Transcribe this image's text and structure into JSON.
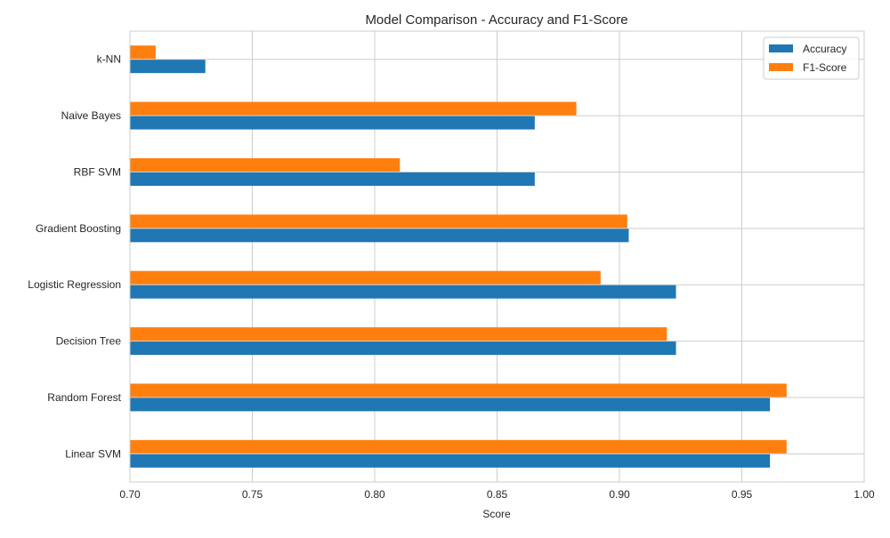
{
  "chart_data": {
    "type": "bar",
    "orientation": "horizontal",
    "title": "Model Comparison - Accuracy and F1-Score",
    "xlabel": "Score",
    "ylabel": "",
    "xlim": [
      0.7,
      1.0
    ],
    "xticks": [
      "0.70",
      "0.75",
      "0.80",
      "0.85",
      "0.90",
      "0.95",
      "1.00"
    ],
    "xtick_values": [
      0.7,
      0.75,
      0.8,
      0.85,
      0.9,
      0.95,
      1.0
    ],
    "grid": true,
    "legend_position": "top-right",
    "categories": [
      "Linear SVM",
      "Random Forest",
      "Decision Tree",
      "Logistic Regression",
      "Gradient Boosting",
      "RBF SVM",
      "Naive Bayes",
      "k-NN"
    ],
    "series": [
      {
        "name": "Accuracy",
        "color": "#1f77b4",
        "values": [
          0.9615,
          0.9615,
          0.9231,
          0.9231,
          0.9038,
          0.8654,
          0.8654,
          0.7308
        ]
      },
      {
        "name": "F1-Score",
        "color": "#ff7f0e",
        "values": [
          0.9683,
          0.9683,
          0.9194,
          0.8923,
          0.9032,
          0.8103,
          0.8824,
          0.7105
        ]
      }
    ]
  }
}
